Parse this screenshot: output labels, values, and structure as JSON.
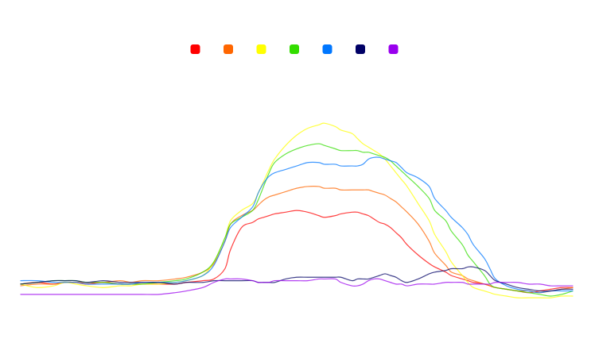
{
  "chart_data": {
    "type": "line",
    "title": "",
    "xlabel": "",
    "ylabel": "",
    "grid": false,
    "axes_visible": false,
    "legend_position": "top-center",
    "xlim": [
      0,
      100
    ],
    "ylim": [
      -2,
      100
    ],
    "x": [
      0,
      3,
      6,
      8,
      10,
      12,
      15,
      18,
      20,
      22,
      25,
      28,
      30,
      33,
      35,
      37,
      38,
      40,
      42,
      43,
      44,
      45,
      46,
      48,
      50,
      52,
      54,
      55,
      57,
      58,
      60,
      61,
      62,
      63,
      64,
      65,
      66,
      67,
      68,
      69,
      70,
      72,
      74,
      75,
      77,
      78,
      80,
      81,
      82,
      84,
      85,
      86,
      88,
      90,
      92,
      94,
      96,
      98,
      100
    ],
    "series": [
      {
        "color": "#ff0000",
        "values": [
          5,
          6,
          5,
          6,
          6,
          5,
          6,
          5,
          5,
          5,
          5,
          5,
          6,
          7,
          8,
          14,
          25,
          38,
          41,
          43,
          44,
          45,
          46,
          47,
          48,
          47,
          45,
          44,
          45,
          46,
          47,
          47,
          46,
          45,
          43,
          41,
          40,
          38,
          35,
          32,
          28,
          22,
          17,
          15,
          12,
          10,
          8,
          7,
          6,
          5,
          4,
          3,
          2,
          1,
          0,
          1,
          2,
          3,
          3
        ]
      },
      {
        "color": "#ff6600",
        "values": [
          4,
          5,
          5,
          6,
          6,
          6,
          6,
          7,
          6,
          7,
          7,
          8,
          9,
          12,
          17,
          30,
          40,
          45,
          48,
          51,
          54,
          56,
          57,
          59,
          61,
          62,
          62,
          61,
          61,
          60,
          60,
          60,
          60,
          60,
          59,
          58,
          57,
          55,
          53,
          50,
          47,
          40,
          30,
          23,
          16,
          12,
          10,
          8,
          7,
          5,
          4,
          3,
          2,
          1,
          1,
          0,
          1,
          2,
          3
        ]
      },
      {
        "color": "#ffff00",
        "values": [
          5,
          3,
          4,
          6,
          5,
          4,
          3,
          4,
          4,
          5,
          5,
          6,
          7,
          10,
          18,
          32,
          42,
          48,
          52,
          58,
          65,
          72,
          78,
          86,
          92,
          96,
          98,
          99,
          97,
          95,
          93,
          90,
          87,
          85,
          83,
          81,
          78,
          74,
          70,
          66,
          62,
          52,
          42,
          34,
          24,
          18,
          10,
          6,
          3,
          1,
          0,
          -1,
          -2,
          -3,
          -3,
          -3,
          -3,
          -2,
          -2
        ]
      },
      {
        "color": "#33dd00",
        "values": [
          5,
          6,
          7,
          7,
          7,
          6,
          6,
          5,
          5,
          5,
          6,
          7,
          8,
          12,
          18,
          32,
          40,
          44,
          48,
          54,
          62,
          70,
          76,
          81,
          84,
          86,
          87,
          86,
          84,
          83,
          83,
          83,
          82,
          82,
          81,
          80,
          79,
          77,
          74,
          71,
          68,
          62,
          55,
          48,
          42,
          36,
          28,
          22,
          18,
          10,
          5,
          3,
          2,
          1,
          0,
          -1,
          -2,
          -1,
          1
        ]
      },
      {
        "color": "#0077ff",
        "values": [
          7,
          7,
          6,
          6,
          6,
          5,
          5,
          5,
          5,
          6,
          6,
          6,
          7,
          10,
          16,
          30,
          38,
          44,
          50,
          58,
          64,
          68,
          70,
          72,
          74,
          76,
          76,
          75,
          75,
          74,
          74,
          74,
          75,
          78,
          79,
          79,
          78,
          77,
          76,
          73,
          70,
          67,
          62,
          55,
          48,
          44,
          38,
          34,
          28,
          20,
          14,
          8,
          4,
          2,
          1,
          0,
          1,
          1,
          1
        ]
      },
      {
        "color": "#000066",
        "values": [
          5,
          6,
          7,
          7,
          7,
          6,
          7,
          6,
          6,
          6,
          6,
          5,
          6,
          6,
          7,
          7,
          7,
          7,
          7,
          6,
          6,
          6,
          6,
          8,
          9,
          9,
          9,
          9,
          9,
          9,
          7,
          8,
          8,
          8,
          9,
          10,
          11,
          10,
          9,
          7,
          6,
          8,
          11,
          12,
          13,
          14,
          14,
          15,
          15,
          13,
          10,
          7,
          5,
          3,
          2,
          1,
          1,
          2,
          2
        ]
      },
      {
        "color": "#9900ee",
        "values": [
          -1,
          -1,
          -1,
          -1,
          -1,
          -1,
          -1,
          -1,
          -1,
          -1,
          -1,
          0,
          1,
          3,
          6,
          8,
          8,
          8,
          7,
          6,
          6,
          6,
          7,
          7,
          7,
          7,
          8,
          8,
          8,
          6,
          4,
          4,
          5,
          7,
          8,
          8,
          7,
          6,
          5,
          5,
          4,
          5,
          5,
          5,
          6,
          6,
          6,
          5,
          5,
          5,
          5,
          6,
          6,
          6,
          5,
          5,
          4,
          4,
          4
        ]
      }
    ]
  }
}
